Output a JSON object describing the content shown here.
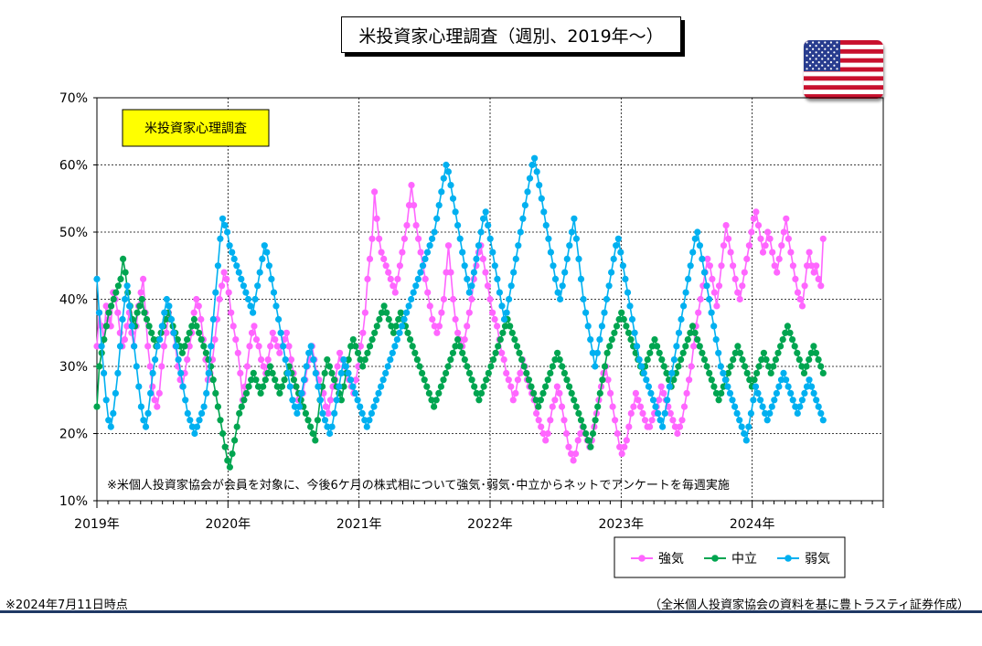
{
  "title": "米投資家心理調査（週別、2019年～）",
  "footnote_left": "※2024年7月11日時点",
  "footnote_right": "（全米個人投資家協会の資料を基に豊トラスティ証券作成）",
  "flag_icon": "us-flag-icon",
  "chart_data": {
    "type": "line",
    "title": "米投資家心理調査（週別、2019年～）",
    "subtitle": "米投資家心理調査",
    "annotation": "※米個人投資家協会が会員を対象に、今後6ケ月の株式相について強気･弱気･中立からネットでアンケートを毎週実施",
    "xlabel": "",
    "ylabel": "",
    "x_range": [
      "2019-01",
      "2025-01"
    ],
    "x_ticks": [
      "2019年",
      "2020年",
      "2021年",
      "2022年",
      "2023年",
      "2024年"
    ],
    "ylim": [
      10,
      70
    ],
    "y_ticks": [
      "10%",
      "20%",
      "30%",
      "40%",
      "50%",
      "60%",
      "70%"
    ],
    "grid": "horizontal-dotted",
    "legend_position": "bottom-right",
    "series_colors": {
      "bullish": "#ff66ff",
      "neutral": "#00a550",
      "bearish": "#00b0f0"
    },
    "series": [
      {
        "name": "強気",
        "key": "bullish",
        "color": "#ff66ff",
        "values": [
          33,
          38,
          36,
          34,
          39,
          37,
          36,
          41,
          40,
          38,
          35,
          33,
          34,
          36,
          38,
          35,
          33,
          36,
          39,
          41,
          43,
          38,
          33,
          30,
          27,
          25,
          24,
          26,
          30,
          33,
          35,
          38,
          37,
          35,
          33,
          30,
          28,
          27,
          29,
          31,
          33,
          35,
          38,
          40,
          39,
          37,
          34,
          31,
          28,
          29,
          31,
          34,
          37,
          40,
          42,
          44,
          43,
          41,
          38,
          36,
          34,
          32,
          29,
          25,
          27,
          30,
          33,
          35,
          36,
          34,
          33,
          31,
          30,
          29,
          31,
          33,
          35,
          34,
          33,
          32,
          33,
          34,
          35,
          33,
          31,
          29,
          27,
          25,
          24,
          26,
          28,
          30,
          31,
          33,
          31,
          29,
          28,
          27,
          26,
          24,
          23,
          25,
          27,
          28,
          30,
          32,
          31,
          30,
          29,
          28,
          27,
          26,
          28,
          30,
          33,
          35,
          38,
          43,
          46,
          49,
          56,
          52,
          49,
          47,
          46,
          45,
          44,
          43,
          42,
          41,
          43,
          45,
          47,
          49,
          51,
          54,
          57,
          54,
          51,
          49,
          47,
          45,
          43,
          41,
          39,
          37,
          36,
          35,
          36,
          38,
          40,
          44,
          48,
          44,
          40,
          37,
          35,
          34,
          33,
          34,
          36,
          38,
          40,
          43,
          45,
          47,
          48,
          46,
          44,
          42,
          40,
          38,
          37,
          36,
          34,
          32,
          31,
          29,
          28,
          27,
          25,
          26,
          28,
          29,
          31,
          30,
          28,
          27,
          26,
          25,
          23,
          22,
          21,
          20,
          19,
          20,
          22,
          24,
          25,
          27,
          26,
          24,
          22,
          20,
          18,
          17,
          16,
          17,
          19,
          20,
          21,
          20,
          19,
          18,
          19,
          21,
          23,
          25,
          27,
          29,
          30,
          28,
          26,
          24,
          22,
          20,
          18,
          17,
          18,
          19,
          21,
          23,
          24,
          26,
          25,
          24,
          23,
          22,
          21,
          21,
          22,
          23,
          24,
          25,
          27,
          26,
          25,
          24,
          23,
          22,
          21,
          20,
          21,
          22,
          24,
          26,
          28,
          30,
          33,
          36,
          38,
          40,
          42,
          44,
          46,
          45,
          43,
          41,
          39,
          42,
          45,
          48,
          51,
          49,
          47,
          45,
          43,
          41,
          40,
          42,
          44,
          46,
          48,
          50,
          52,
          53,
          51,
          49,
          47,
          48,
          50,
          49,
          47,
          45,
          44,
          46,
          48,
          50,
          52,
          49,
          47,
          45,
          43,
          41,
          40,
          39,
          42,
          45,
          47,
          45,
          44,
          45,
          43,
          42,
          49
        ]
      },
      {
        "name": "中立",
        "key": "neutral",
        "color": "#00a550",
        "values": [
          24,
          30,
          32,
          34,
          36,
          38,
          39,
          40,
          41,
          42,
          43,
          46,
          44,
          41,
          39,
          37,
          36,
          38,
          39,
          40,
          38,
          37,
          36,
          35,
          34,
          33,
          34,
          35,
          36,
          37,
          38,
          37,
          36,
          35,
          34,
          33,
          32,
          33,
          34,
          35,
          36,
          37,
          36,
          35,
          34,
          33,
          32,
          31,
          30,
          28,
          26,
          24,
          22,
          20,
          18,
          16,
          15,
          17,
          19,
          21,
          23,
          24,
          25,
          26,
          27,
          28,
          29,
          28,
          27,
          26,
          27,
          28,
          29,
          30,
          29,
          28,
          27,
          26,
          27,
          28,
          29,
          30,
          29,
          28,
          27,
          26,
          25,
          24,
          23,
          22,
          21,
          20,
          19,
          22,
          25,
          27,
          29,
          31,
          30,
          29,
          28,
          27,
          26,
          25,
          27,
          29,
          31,
          33,
          34,
          33,
          32,
          31,
          30,
          31,
          32,
          33,
          34,
          35,
          36,
          37,
          38,
          39,
          38,
          37,
          36,
          35,
          36,
          37,
          38,
          37,
          36,
          35,
          34,
          33,
          32,
          31,
          30,
          29,
          28,
          27,
          26,
          25,
          24,
          25,
          26,
          27,
          28,
          29,
          30,
          31,
          32,
          33,
          34,
          33,
          32,
          31,
          30,
          29,
          28,
          27,
          26,
          25,
          26,
          27,
          28,
          29,
          30,
          31,
          32,
          33,
          34,
          35,
          36,
          37,
          36,
          35,
          34,
          33,
          32,
          31,
          30,
          29,
          28,
          27,
          26,
          25,
          24,
          25,
          26,
          27,
          28,
          29,
          30,
          31,
          32,
          31,
          30,
          29,
          28,
          27,
          26,
          25,
          24,
          23,
          22,
          21,
          20,
          19,
          18,
          20,
          22,
          24,
          26,
          28,
          30,
          32,
          33,
          34,
          35,
          36,
          37,
          38,
          37,
          36,
          35,
          34,
          33,
          32,
          31,
          30,
          29,
          30,
          31,
          32,
          33,
          34,
          33,
          32,
          31,
          30,
          29,
          28,
          27,
          28,
          29,
          30,
          31,
          32,
          33,
          34,
          35,
          36,
          35,
          34,
          33,
          32,
          31,
          30,
          29,
          28,
          27,
          26,
          25,
          26,
          27,
          28,
          29,
          30,
          31,
          32,
          33,
          32,
          31,
          30,
          29,
          28,
          27,
          28,
          29,
          30,
          31,
          32,
          31,
          30,
          29,
          30,
          31,
          32,
          33,
          34,
          35,
          36,
          35,
          34,
          33,
          32,
          31,
          30,
          29,
          30,
          31,
          32,
          33,
          32,
          31,
          30,
          29
        ]
      },
      {
        "name": "弱気",
        "key": "bearish",
        "color": "#00b0f0",
        "values": [
          43,
          38,
          33,
          29,
          25,
          22,
          21,
          23,
          26,
          29,
          33,
          37,
          40,
          42,
          39,
          36,
          33,
          30,
          27,
          24,
          22,
          21,
          23,
          26,
          29,
          31,
          33,
          34,
          36,
          38,
          40,
          39,
          37,
          35,
          33,
          31,
          29,
          27,
          25,
          23,
          22,
          21,
          20,
          21,
          22,
          23,
          24,
          26,
          29,
          33,
          37,
          41,
          45,
          49,
          52,
          51,
          50,
          48,
          47,
          46,
          45,
          44,
          43,
          42,
          41,
          40,
          39,
          38,
          40,
          42,
          44,
          46,
          48,
          47,
          45,
          43,
          41,
          39,
          37,
          35,
          33,
          31,
          29,
          27,
          25,
          24,
          23,
          24,
          26,
          28,
          30,
          32,
          33,
          31,
          29,
          27,
          25,
          23,
          22,
          21,
          20,
          21,
          23,
          25,
          27,
          29,
          31,
          30,
          29,
          28,
          27,
          26,
          25,
          24,
          23,
          22,
          21,
          22,
          23,
          24,
          25,
          26,
          27,
          28,
          29,
          30,
          31,
          32,
          33,
          34,
          35,
          36,
          37,
          38,
          39,
          40,
          41,
          42,
          43,
          44,
          45,
          46,
          47,
          48,
          49,
          50,
          52,
          54,
          56,
          58,
          60,
          59,
          57,
          55,
          53,
          51,
          49,
          47,
          45,
          43,
          41,
          42,
          44,
          46,
          48,
          50,
          52,
          53,
          51,
          49,
          47,
          45,
          43,
          41,
          39,
          37,
          38,
          40,
          42,
          44,
          46,
          48,
          50,
          52,
          54,
          56,
          58,
          60,
          61,
          59,
          57,
          55,
          53,
          51,
          49,
          47,
          45,
          43,
          41,
          40,
          42,
          44,
          46,
          48,
          50,
          52,
          49,
          46,
          43,
          40,
          38,
          36,
          34,
          32,
          30,
          32,
          34,
          36,
          38,
          40,
          42,
          44,
          46,
          48,
          49,
          47,
          45,
          43,
          41,
          39,
          37,
          35,
          33,
          31,
          30,
          29,
          28,
          27,
          26,
          25,
          24,
          23,
          22,
          21,
          23,
          25,
          27,
          29,
          31,
          33,
          35,
          37,
          39,
          41,
          43,
          45,
          47,
          49,
          50,
          48,
          46,
          44,
          42,
          40,
          38,
          36,
          34,
          32,
          30,
          29,
          28,
          27,
          26,
          25,
          24,
          23,
          22,
          21,
          20,
          19,
          21,
          23,
          25,
          27,
          26,
          25,
          24,
          23,
          22,
          23,
          24,
          25,
          26,
          27,
          28,
          29,
          28,
          27,
          26,
          25,
          24,
          23,
          24,
          25,
          26,
          27,
          28,
          27,
          26,
          25,
          24,
          23,
          22
        ]
      }
    ]
  }
}
